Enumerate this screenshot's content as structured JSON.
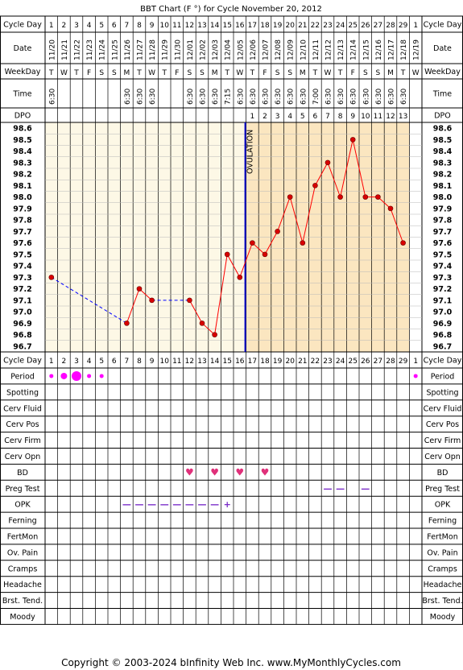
{
  "title": "BBT Chart (F °) for Cycle November 20, 2012",
  "footer": {
    "copyright": "Copyright © 2003-2024 bInfinity Web Inc.",
    "site": "www.MyMonthlyCycles.com"
  },
  "ovulation_label": "OVULATION",
  "colors": {
    "pre_bg": "#fdf8e6",
    "post_bg": "#fbe6c0",
    "header_bg": "#ffffff",
    "grid": "#b8b8b8",
    "line": "#ff0000",
    "point": "#d80000",
    "gap_line": "#0000ff",
    "ovulation": "#0000cc",
    "period": "#ff00ff",
    "bd": "#e0307a",
    "marks": "#7a2cc8"
  },
  "row_labels": {
    "cycle_day": "Cycle Day",
    "date": "Date",
    "weekday": "WeekDay",
    "time": "Time",
    "dpo": "DPO",
    "observations": [
      "Period",
      "Spotting",
      "Cerv Fluid",
      "Cerv Pos",
      "Cerv Firm",
      "Cerv Opn",
      "BD",
      "Preg Test",
      "OPK",
      "Ferning",
      "FertMon",
      "Ov. Pain",
      "Cramps",
      "Headache",
      "Brst. Tend.",
      "Moody"
    ]
  },
  "cycle_days": [
    "1",
    "2",
    "3",
    "4",
    "5",
    "6",
    "7",
    "8",
    "9",
    "10",
    "11",
    "12",
    "13",
    "14",
    "15",
    "16",
    "17",
    "18",
    "19",
    "20",
    "21",
    "22",
    "23",
    "24",
    "25",
    "26",
    "27",
    "28",
    "29",
    "1"
  ],
  "dates": [
    "11/20",
    "11/21",
    "11/22",
    "11/23",
    "11/24",
    "11/25",
    "11/26",
    "11/27",
    "11/28",
    "11/29",
    "11/30",
    "12/01",
    "12/02",
    "12/03",
    "12/04",
    "12/05",
    "12/06",
    "12/07",
    "12/08",
    "12/09",
    "12/10",
    "12/11",
    "12/12",
    "12/13",
    "12/14",
    "12/15",
    "12/16",
    "12/17",
    "12/18",
    "12/19"
  ],
  "weekdays": [
    "T",
    "W",
    "T",
    "F",
    "S",
    "S",
    "M",
    "T",
    "W",
    "T",
    "F",
    "S",
    "S",
    "M",
    "T",
    "W",
    "T",
    "F",
    "S",
    "S",
    "M",
    "T",
    "W",
    "T",
    "F",
    "S",
    "S",
    "M",
    "T",
    "W"
  ],
  "times": [
    "6:30",
    "",
    "",
    "",
    "",
    "",
    "6:30",
    "6:30",
    "6:30",
    "",
    "",
    "6:30",
    "6:30",
    "6:30",
    "7:15",
    "6:30",
    "6:30",
    "6:30",
    "6:30",
    "6:30",
    "6:30",
    "7:00",
    "6:30",
    "6:30",
    "6:30",
    "6:30",
    "6:30",
    "6:30",
    "6:30",
    ""
  ],
  "dpo": [
    "",
    "",
    "",
    "",
    "",
    "",
    "",
    "",
    "",
    "",
    "",
    "",
    "",
    "",
    "",
    "",
    "1",
    "2",
    "3",
    "4",
    "5",
    "6",
    "7",
    "8",
    "9",
    "10",
    "11",
    "12",
    "13",
    ""
  ],
  "chart_data": {
    "type": "line",
    "title": "BBT Chart (F °) for Cycle November 20, 2012",
    "x": [
      1,
      2,
      3,
      4,
      5,
      6,
      7,
      8,
      9,
      10,
      11,
      12,
      13,
      14,
      15,
      16,
      17,
      18,
      19,
      20,
      21,
      22,
      23,
      24,
      25,
      26,
      27,
      28,
      29,
      30
    ],
    "temperatures": [
      97.3,
      null,
      null,
      null,
      null,
      null,
      96.9,
      97.2,
      97.1,
      null,
      null,
      97.1,
      96.9,
      96.8,
      97.5,
      97.3,
      97.6,
      97.5,
      97.7,
      98.0,
      97.6,
      98.1,
      98.3,
      98.0,
      98.5,
      98.0,
      98.0,
      97.9,
      97.6,
      null
    ],
    "y_ticks": [
      "96.7",
      "96.8",
      "96.9",
      "97.0",
      "97.1",
      "97.2",
      "97.3",
      "97.4",
      "97.5",
      "97.6",
      "97.7",
      "97.8",
      "97.9",
      "98.0",
      "98.1",
      "98.2",
      "98.3",
      "98.4",
      "98.5",
      "98.6"
    ],
    "ylim": [
      96.7,
      98.6
    ],
    "ovulation_day": 16,
    "grid": true
  },
  "observations": {
    "period": [
      {
        "day": 1,
        "size": "small"
      },
      {
        "day": 2,
        "size": "medium"
      },
      {
        "day": 3,
        "size": "large"
      },
      {
        "day": 4,
        "size": "small"
      },
      {
        "day": 5,
        "size": "small"
      },
      {
        "day": 30,
        "size": "small"
      }
    ],
    "bd": [
      12,
      14,
      16,
      18
    ],
    "bd_symbol": "♥",
    "preg_test": [
      23,
      24,
      26
    ],
    "preg_test_symbol": "—",
    "opk": [
      {
        "day": 7,
        "symbol": "—"
      },
      {
        "day": 8,
        "symbol": "—"
      },
      {
        "day": 9,
        "symbol": "—"
      },
      {
        "day": 10,
        "symbol": "—"
      },
      {
        "day": 11,
        "symbol": "—"
      },
      {
        "day": 12,
        "symbol": "—"
      },
      {
        "day": 13,
        "symbol": "—"
      },
      {
        "day": 14,
        "symbol": "—"
      },
      {
        "day": 15,
        "symbol": "+"
      }
    ]
  }
}
